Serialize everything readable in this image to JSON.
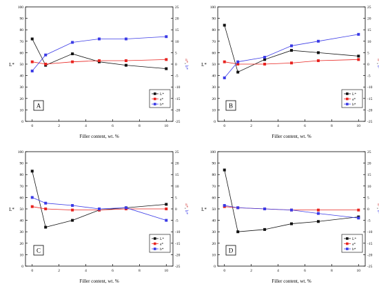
{
  "colors": {
    "L": "#111111",
    "a": "#e8231f",
    "b": "#3a3ae6",
    "axis": "#000000",
    "right_axis_label": "#d23c3c",
    "right_axis_label_b": "#3a3ae6"
  },
  "panel_tag": "panel-letter",
  "chart_data": [
    {
      "type": "line",
      "panel_label": "A",
      "xlabel": "Filler content, wt. %",
      "ylabel_left": "L*",
      "ylabel_right_a": "a*",
      "ylabel_right_sep": ", ",
      "ylabel_right_b": "b*",
      "xlim": [
        -0.5,
        10.5
      ],
      "xticks": [
        0,
        2,
        4,
        6,
        8,
        10
      ],
      "ylim_left": [
        0,
        100
      ],
      "yticks_left": [
        0,
        10,
        20,
        30,
        40,
        50,
        60,
        70,
        80,
        90,
        100
      ],
      "ylim_right": [
        -25,
        25
      ],
      "yticks_right": [
        -25,
        -20,
        -15,
        -10,
        -5,
        0,
        5,
        10,
        15,
        20,
        25
      ],
      "legend_position": "bottom-right",
      "x": [
        0,
        1,
        3,
        5,
        7,
        10
      ],
      "series": [
        {
          "name": "L*",
          "axis": "left",
          "marker": "square",
          "values": [
            72,
            49,
            59,
            52,
            49,
            46
          ]
        },
        {
          "name": "a*",
          "axis": "right",
          "marker": "circle",
          "values": [
            1,
            0,
            1,
            1.5,
            1.5,
            2
          ]
        },
        {
          "name": "b*",
          "axis": "right",
          "marker": "triangle",
          "values": [
            -3,
            4,
            9.5,
            11,
            11,
            12
          ]
        }
      ]
    },
    {
      "type": "line",
      "panel_label": "B",
      "xlabel": "Filler content, wt. %",
      "ylabel_left": "L*",
      "ylabel_right_a": "a*",
      "ylabel_right_sep": ", ",
      "ylabel_right_b": "b*",
      "xlim": [
        -0.5,
        10.5
      ],
      "xticks": [
        0,
        2,
        4,
        6,
        8,
        10
      ],
      "ylim_left": [
        0,
        100
      ],
      "yticks_left": [
        0,
        10,
        20,
        30,
        40,
        50,
        60,
        70,
        80,
        90,
        100
      ],
      "ylim_right": [
        -25,
        25
      ],
      "yticks_right": [
        -25,
        -20,
        -15,
        -10,
        -5,
        0,
        5,
        10,
        15,
        20,
        25
      ],
      "legend_position": "bottom-right",
      "x": [
        0,
        1,
        3,
        5,
        7,
        10
      ],
      "series": [
        {
          "name": "L*",
          "axis": "left",
          "marker": "square",
          "values": [
            84,
            43,
            54,
            62,
            60,
            57
          ]
        },
        {
          "name": "a*",
          "axis": "right",
          "marker": "circle",
          "values": [
            1,
            0,
            0,
            0.5,
            1.5,
            2
          ]
        },
        {
          "name": "b*",
          "axis": "right",
          "marker": "triangle",
          "values": [
            -6,
            1,
            3,
            8,
            10,
            13
          ]
        }
      ]
    },
    {
      "type": "line",
      "panel_label": "C",
      "xlabel": "Filler content, wt. %",
      "ylabel_left": "L*",
      "ylabel_right_a": "a*",
      "ylabel_right_sep": ", ",
      "ylabel_right_b": "b*",
      "xlim": [
        -0.5,
        10.5
      ],
      "xticks": [
        0,
        2,
        4,
        6,
        8,
        10
      ],
      "ylim_left": [
        0,
        100
      ],
      "yticks_left": [
        0,
        10,
        20,
        30,
        40,
        50,
        60,
        70,
        80,
        90,
        100
      ],
      "ylim_right": [
        -25,
        25
      ],
      "yticks_right": [
        -25,
        -20,
        -15,
        -10,
        -5,
        0,
        5,
        10,
        15,
        20,
        25
      ],
      "legend_position": "bottom-right",
      "x": [
        0,
        1,
        3,
        5,
        7,
        10
      ],
      "series": [
        {
          "name": "L*",
          "axis": "left",
          "marker": "square",
          "values": [
            83,
            34,
            40,
            49,
            51,
            54
          ]
        },
        {
          "name": "a*",
          "axis": "right",
          "marker": "circle",
          "values": [
            1,
            0,
            -0.5,
            -0.5,
            0,
            0
          ]
        },
        {
          "name": "b*",
          "axis": "right",
          "marker": "triangle",
          "values": [
            5,
            2.5,
            1.5,
            0,
            0.5,
            -5
          ]
        }
      ]
    },
    {
      "type": "line",
      "panel_label": "D",
      "xlabel": "Filler content, wt. %",
      "ylabel_left": "L*",
      "ylabel_right_a": "a*",
      "ylabel_right_sep": ", ",
      "ylabel_right_b": "b*",
      "xlim": [
        -0.5,
        10.5
      ],
      "xticks": [
        0,
        2,
        4,
        6,
        8,
        10
      ],
      "ylim_left": [
        0,
        100
      ],
      "yticks_left": [
        0,
        10,
        20,
        30,
        40,
        50,
        60,
        70,
        80,
        90,
        100
      ],
      "ylim_right": [
        -25,
        25
      ],
      "yticks_right": [
        -25,
        -20,
        -15,
        -10,
        -5,
        0,
        5,
        10,
        15,
        20,
        25
      ],
      "legend_position": "bottom-right",
      "x": [
        0,
        1,
        3,
        5,
        7,
        10
      ],
      "series": [
        {
          "name": "L*",
          "axis": "left",
          "marker": "square",
          "values": [
            84,
            30,
            32,
            37,
            39,
            43
          ]
        },
        {
          "name": "a*",
          "axis": "right",
          "marker": "circle",
          "values": [
            1,
            0.5,
            0,
            -0.5,
            -0.5,
            -0.5
          ]
        },
        {
          "name": "b*",
          "axis": "right",
          "marker": "triangle",
          "values": [
            1.5,
            0.5,
            0,
            -0.5,
            -2,
            -4
          ]
        }
      ]
    }
  ]
}
